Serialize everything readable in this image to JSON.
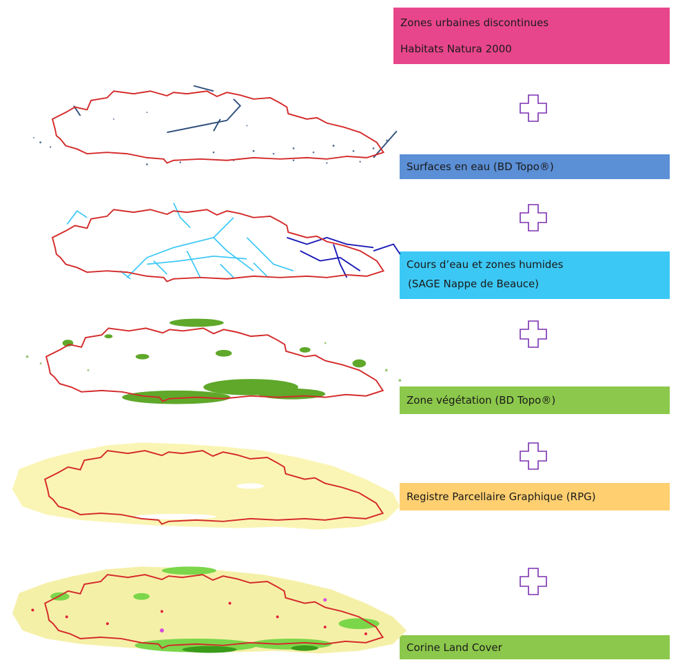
{
  "labels": {
    "top": {
      "line1": "Zones urbaines discontinues",
      "line2": "Habitats Natura 2000",
      "color": "#E8468C"
    },
    "water_surfaces": {
      "text": "Surfaces en eau (BD Topo®)",
      "color": "#5B8FD6"
    },
    "watercourses": {
      "line1": "Cours d’eau et zones humides",
      "line2": "(SAGE Nappe de Beauce)",
      "color": "#3CC8F5"
    },
    "vegetation": {
      "text": "Zone végétation (BD Topo®)",
      "color": "#8CC84B"
    },
    "rpg": {
      "text": "Registre Parcellaire Graphique (RPG)",
      "color": "#FFCF70"
    },
    "corine": {
      "text": "Corine Land Cover",
      "color": "#8CC84B"
    }
  },
  "colors": {
    "boundary": "#D42A2A",
    "plus_outline": "#7A2FB0",
    "water_dark": "#2E4E7A",
    "water_blue": "#3CC8F5",
    "water_navy": "#1A1AB5",
    "veg_green": "#5FA82A",
    "rpg_yellow": "#FBF5B5",
    "clc_green": "#7BD64A"
  },
  "icons": [
    "plus-icon",
    "plus-icon",
    "plus-icon",
    "plus-icon",
    "plus-icon"
  ]
}
